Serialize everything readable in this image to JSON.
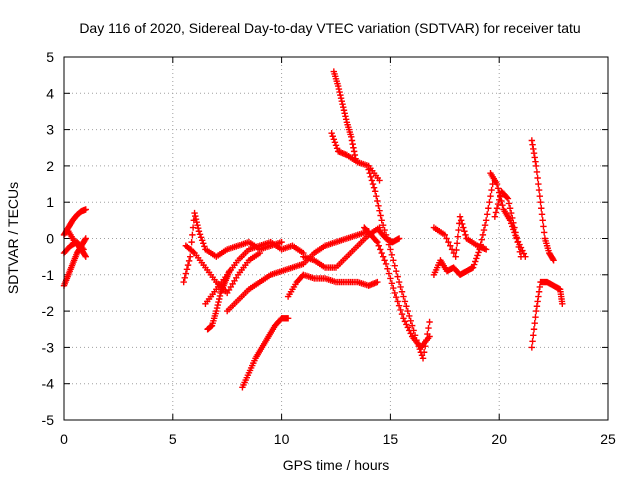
{
  "chart_data": {
    "type": "scatter",
    "title": "Day 116 of 2020, Sidereal Day-to-day VTEC variation (SDTVAR) for receiver tatu",
    "xlabel": "GPS time / hours",
    "ylabel": "SDTVAR / TECUs",
    "xlim": [
      0,
      25
    ],
    "ylim": [
      -5,
      5
    ],
    "xticks": [
      0,
      5,
      10,
      15,
      20,
      25
    ],
    "yticks": [
      -5,
      -4,
      -3,
      -2,
      -1,
      0,
      1,
      2,
      3,
      4,
      5
    ],
    "grid": true,
    "marker": "+",
    "color": "#ff0000",
    "tracks": [
      {
        "x": [
          0.0,
          0.2,
          0.4,
          0.6,
          0.8,
          1.0
        ],
        "y": [
          0.1,
          0.3,
          0.5,
          0.65,
          0.75,
          0.8
        ]
      },
      {
        "x": [
          0.0,
          0.2,
          0.4,
          0.6,
          0.8,
          1.0
        ],
        "y": [
          -1.3,
          -1.0,
          -0.7,
          -0.4,
          -0.2,
          0.0
        ]
      },
      {
        "x": [
          0.0,
          0.3,
          0.6,
          0.9
        ],
        "y": [
          -0.4,
          -0.2,
          -0.1,
          -0.3
        ]
      },
      {
        "x": [
          0.2,
          0.5,
          0.8,
          1.0
        ],
        "y": [
          0.2,
          -0.1,
          -0.3,
          -0.5
        ]
      },
      {
        "x": [
          5.5,
          5.8,
          6.0,
          6.2,
          6.5,
          7.0,
          7.5,
          8.0,
          8.5,
          9.0,
          9.5,
          10.0
        ],
        "y": [
          -1.2,
          -0.5,
          0.7,
          0.2,
          -0.3,
          -0.5,
          -0.3,
          -0.2,
          -0.1,
          -0.3,
          -0.2,
          -0.1
        ]
      },
      {
        "x": [
          5.6,
          6.0,
          6.5,
          7.0,
          7.5,
          8.0,
          8.5,
          9.0
        ],
        "y": [
          -0.2,
          -0.4,
          -0.8,
          -1.2,
          -1.5,
          -1.0,
          -0.6,
          -0.4
        ]
      },
      {
        "x": [
          6.5,
          7.0,
          7.5,
          8.0,
          8.5,
          9.0,
          9.5,
          10.0,
          10.5,
          11.0
        ],
        "y": [
          -1.8,
          -1.4,
          -1.0,
          -0.6,
          -0.3,
          -0.2,
          -0.1,
          -0.3,
          -0.2,
          -0.4
        ]
      },
      {
        "x": [
          6.6,
          6.8,
          7.0,
          7.2,
          7.4,
          7.6
        ],
        "y": [
          -2.5,
          -2.4,
          -2.0,
          -1.5,
          -1.2,
          -0.9
        ]
      },
      {
        "x": [
          7.5,
          8.0,
          8.5,
          9.0,
          9.5,
          10.0,
          10.5,
          11.0,
          11.5,
          12.0,
          12.5,
          13.0,
          13.5,
          14.0
        ],
        "y": [
          -2.0,
          -1.7,
          -1.4,
          -1.2,
          -1.0,
          -0.9,
          -0.8,
          -0.7,
          -0.4,
          -0.2,
          -0.1,
          0.0,
          0.1,
          0.2
        ]
      },
      {
        "x": [
          10.3,
          10.7,
          11.0,
          11.5,
          12.0,
          12.5,
          13.0,
          13.5,
          14.0,
          14.4
        ],
        "y": [
          -1.6,
          -1.2,
          -1.0,
          -1.1,
          -1.1,
          -1.2,
          -1.2,
          -1.2,
          -1.3,
          -1.2
        ]
      },
      {
        "x": [
          11.0,
          11.5,
          12.0,
          12.5,
          13.0,
          13.5,
          14.0,
          14.5
        ],
        "y": [
          -0.5,
          -0.6,
          -0.8,
          -0.8,
          -0.5,
          -0.2,
          0.1,
          0.3
        ]
      },
      {
        "x": [
          8.2,
          8.5,
          8.8,
          9.1,
          9.4,
          9.7,
          10.0,
          10.3
        ],
        "y": [
          -4.1,
          -3.7,
          -3.3,
          -3.0,
          -2.7,
          -2.4,
          -2.2,
          -2.2
        ]
      },
      {
        "x": [
          12.4,
          12.6,
          12.8,
          13.0,
          13.2,
          13.4
        ],
        "y": [
          4.6,
          4.2,
          3.7,
          3.2,
          2.8,
          2.2
        ]
      },
      {
        "x": [
          12.3,
          12.6,
          13.0,
          13.5,
          14.0,
          14.5
        ],
        "y": [
          2.9,
          2.4,
          2.3,
          2.1,
          2.0,
          1.6
        ]
      },
      {
        "x": [
          14.0,
          14.3,
          14.6,
          15.0,
          15.4,
          15.8,
          16.2,
          16.5,
          16.8
        ],
        "y": [
          1.9,
          1.3,
          0.5,
          -0.3,
          -1.2,
          -2.0,
          -2.8,
          -3.3,
          -2.3
        ]
      },
      {
        "x": [
          13.8,
          14.1,
          14.4,
          14.8,
          15.2,
          15.6,
          16.0,
          16.4,
          16.8
        ],
        "y": [
          0.3,
          0.1,
          -0.1,
          -0.7,
          -1.5,
          -2.2,
          -2.7,
          -3.0,
          -2.7
        ]
      },
      {
        "x": [
          14.5,
          14.8,
          15.1,
          15.4
        ],
        "y": [
          0.2,
          0.0,
          -0.1,
          0.0
        ]
      },
      {
        "x": [
          17.0,
          17.3,
          17.6,
          17.9,
          18.2,
          18.5,
          18.8,
          19.1,
          19.4,
          19.7
        ],
        "y": [
          -1.0,
          -0.6,
          -0.9,
          -0.8,
          -1.0,
          -0.9,
          -0.8,
          -0.3,
          0.5,
          1.5
        ]
      },
      {
        "x": [
          17.0,
          17.5,
          18.0,
          18.2,
          18.5,
          19.0,
          19.4
        ],
        "y": [
          0.3,
          0.1,
          -0.5,
          0.6,
          0.0,
          -0.2,
          -0.3
        ]
      },
      {
        "x": [
          19.6,
          19.9,
          20.2,
          20.5,
          20.8,
          21.2
        ],
        "y": [
          1.8,
          1.5,
          0.8,
          0.5,
          0.0,
          -0.5
        ]
      },
      {
        "x": [
          19.8,
          20.1,
          20.4,
          20.7,
          21.0
        ],
        "y": [
          0.6,
          1.3,
          1.1,
          0.3,
          -0.5
        ]
      },
      {
        "x": [
          21.5,
          21.7,
          21.9,
          22.1,
          22.3,
          22.5
        ],
        "y": [
          2.7,
          2.0,
          1.0,
          0.0,
          -0.4,
          -0.6
        ]
      },
      {
        "x": [
          21.5,
          21.7,
          21.9,
          22.2,
          22.5,
          22.8,
          22.9
        ],
        "y": [
          -3.0,
          -2.0,
          -1.2,
          -1.2,
          -1.3,
          -1.4,
          -1.8
        ]
      }
    ]
  }
}
